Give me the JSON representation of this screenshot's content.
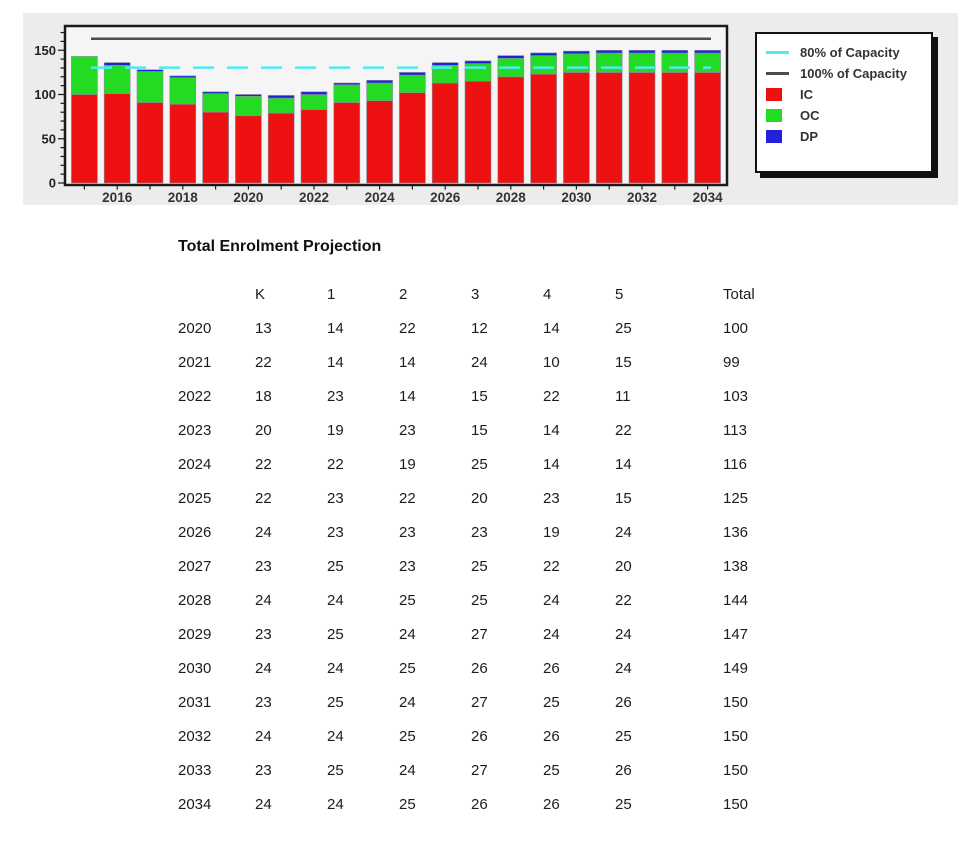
{
  "chart_data": {
    "type": "bar",
    "stacked": true,
    "x": [
      2015,
      2016,
      2017,
      2018,
      2019,
      2020,
      2021,
      2022,
      2023,
      2024,
      2025,
      2026,
      2027,
      2028,
      2029,
      2030,
      2031,
      2032,
      2033,
      2034
    ],
    "x_tick_labels": [
      2016,
      2018,
      2020,
      2022,
      2024,
      2026,
      2028,
      2030,
      2032,
      2034
    ],
    "series": [
      {
        "name": "IC",
        "color": "#EE1111",
        "values": [
          100,
          101,
          91,
          89,
          80,
          76,
          79,
          83,
          91,
          93,
          102,
          113,
          115,
          120,
          123,
          125,
          125,
          125,
          125,
          125
        ]
      },
      {
        "name": "OC",
        "color": "#22DB22",
        "values": [
          43,
          32,
          35,
          30,
          21,
          22,
          17,
          17,
          20,
          20,
          20,
          20,
          20,
          21,
          21,
          21,
          22,
          22,
          22,
          22
        ]
      },
      {
        "name": "DP",
        "color": "#2020DD",
        "values": [
          0,
          3,
          2,
          2,
          2,
          2,
          3,
          3,
          2,
          3,
          3,
          3,
          3,
          3,
          3,
          3,
          3,
          3,
          3,
          3
        ]
      }
    ],
    "totals": [
      143,
      136,
      128,
      121,
      103,
      100,
      99,
      103,
      113,
      116,
      125,
      136,
      138,
      144,
      147,
      149,
      150,
      150,
      150,
      150
    ],
    "reference_lines": [
      {
        "name": "80% of Capacity",
        "value": 130.4,
        "color": "#4FE9F2",
        "style": "dashed"
      },
      {
        "name": "100% of Capacity",
        "value": 163,
        "color": "#4D4D4D",
        "style": "solid"
      }
    ],
    "title": "",
    "xlabel": "",
    "ylabel": "",
    "ylim": [
      0,
      176
    ],
    "yticks": [
      0,
      50,
      100,
      150
    ],
    "grid": false,
    "legend_position": "right",
    "plot_background": "#F5F5F5",
    "panel_background": "#ECECEC"
  },
  "legend": {
    "items": [
      {
        "label": "80% of Capacity",
        "swatch": "line",
        "color": "#4FE9F2"
      },
      {
        "label": "100% of Capacity",
        "swatch": "line",
        "color": "#4D4D4D"
      },
      {
        "label": "IC",
        "swatch": "box",
        "color": "#EE1111"
      },
      {
        "label": "OC",
        "swatch": "box",
        "color": "#22DB22"
      },
      {
        "label": "DP",
        "swatch": "box",
        "color": "#2020DD"
      }
    ]
  },
  "table": {
    "title": "Total Enrolment Projection",
    "columns": [
      "",
      "K",
      "1",
      "2",
      "3",
      "4",
      "5",
      "Total"
    ],
    "rows": [
      [
        "2020",
        "13",
        "14",
        "22",
        "12",
        "14",
        "25",
        "100"
      ],
      [
        "2021",
        "22",
        "14",
        "14",
        "24",
        "10",
        "15",
        "99"
      ],
      [
        "2022",
        "18",
        "23",
        "14",
        "15",
        "22",
        "11",
        "103"
      ],
      [
        "2023",
        "20",
        "19",
        "23",
        "15",
        "14",
        "22",
        "113"
      ],
      [
        "2024",
        "22",
        "22",
        "19",
        "25",
        "14",
        "14",
        "116"
      ],
      [
        "2025",
        "22",
        "23",
        "22",
        "20",
        "23",
        "15",
        "125"
      ],
      [
        "2026",
        "24",
        "23",
        "23",
        "23",
        "19",
        "24",
        "136"
      ],
      [
        "2027",
        "23",
        "25",
        "23",
        "25",
        "22",
        "20",
        "138"
      ],
      [
        "2028",
        "24",
        "24",
        "25",
        "25",
        "24",
        "22",
        "144"
      ],
      [
        "2029",
        "23",
        "25",
        "24",
        "27",
        "24",
        "24",
        "147"
      ],
      [
        "2030",
        "24",
        "24",
        "25",
        "26",
        "26",
        "24",
        "149"
      ],
      [
        "2031",
        "23",
        "25",
        "24",
        "27",
        "25",
        "26",
        "150"
      ],
      [
        "2032",
        "24",
        "24",
        "25",
        "26",
        "26",
        "25",
        "150"
      ],
      [
        "2033",
        "23",
        "25",
        "24",
        "27",
        "25",
        "26",
        "150"
      ],
      [
        "2034",
        "24",
        "24",
        "25",
        "26",
        "26",
        "25",
        "150"
      ]
    ]
  }
}
